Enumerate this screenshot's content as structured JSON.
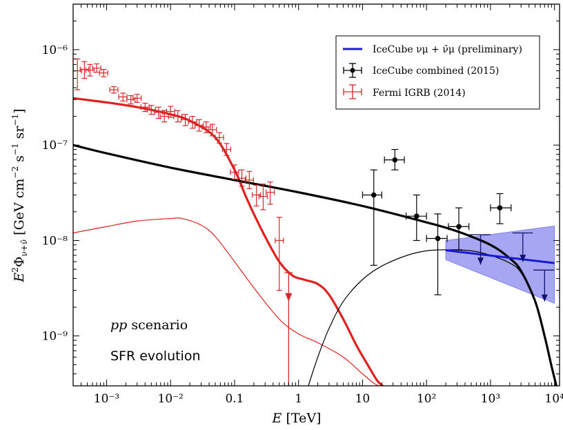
{
  "chart_data": {
    "type": "line",
    "xlabel": "E [TeV]",
    "ylabel": "E²Φν+ν̄ [GeV cm⁻² s⁻¹ sr⁻¹]",
    "xscale": "log",
    "yscale": "log",
    "xlim": [
      0.0003,
      12000
    ],
    "ylim": [
      3e-10,
      3e-06
    ],
    "grid": false,
    "legend_position": "top-right",
    "x_ticks": [
      {
        "value": 0.001,
        "label": "10⁻³"
      },
      {
        "value": 0.01,
        "label": "10⁻²"
      },
      {
        "value": 0.1,
        "label": "0.1"
      },
      {
        "value": 1,
        "label": "1"
      },
      {
        "value": 10,
        "label": "10"
      },
      {
        "value": 100,
        "label": "10²"
      },
      {
        "value": 1000,
        "label": "10³"
      },
      {
        "value": 10000,
        "label": "10⁴"
      }
    ],
    "y_ticks": [
      {
        "value": 1e-09,
        "label": "10⁻⁹"
      },
      {
        "value": 1e-08,
        "label": "10⁻⁸"
      },
      {
        "value": 1e-07,
        "label": "10⁻⁷"
      },
      {
        "value": 1e-06,
        "label": "10⁻⁶"
      }
    ],
    "annotations": [
      "pp scenario",
      "SFR evolution"
    ],
    "legend": [
      {
        "label": "IceCube νμ + ν̄μ (preliminary)",
        "color": "#1a1ad6",
        "style": "line"
      },
      {
        "label": "IceCube combined (2015)",
        "color": "#000000",
        "style": "errorbar"
      },
      {
        "label": "Fermi IGRB (2014)",
        "color": "#d62728",
        "style": "errorbar-open"
      }
    ],
    "curves": [
      {
        "id": "red-thick",
        "color": "#e0201c",
        "width": 3.2,
        "x": [
          0.0003,
          0.001,
          0.003,
          0.01,
          0.02,
          0.05,
          0.1,
          0.15,
          0.2,
          0.3,
          0.5,
          0.8,
          1.2,
          2,
          3,
          5,
          8,
          12,
          17,
          22
        ],
        "y": [
          3.1e-07,
          2.8e-07,
          2.5e-07,
          2.1e-07,
          1.8e-07,
          1.2e-07,
          5.5e-08,
          2.9e-08,
          1.9e-08,
          1.1e-08,
          6e-09,
          4.3e-09,
          3.9e-09,
          3.5e-09,
          2.7e-09,
          1.5e-09,
          8e-10,
          5e-10,
          3.4e-10,
          2.9e-10
        ]
      },
      {
        "id": "red-thin",
        "color": "#e0201c",
        "width": 1.2,
        "x": [
          0.0003,
          0.001,
          0.003,
          0.01,
          0.015,
          0.03,
          0.05,
          0.1,
          0.2,
          0.5,
          1,
          2,
          5,
          10,
          15,
          20
        ],
        "y": [
          1.2e-08,
          1.4e-08,
          1.6e-08,
          1.7e-08,
          1.7e-08,
          1.45e-08,
          1.1e-08,
          6e-09,
          3.2e-09,
          1.5e-09,
          1.05e-09,
          8.5e-10,
          6e-10,
          4e-10,
          3.2e-10,
          2.9e-10
        ]
      },
      {
        "id": "black-thick",
        "color": "#000000",
        "width": 3.2,
        "x": [
          0.0003,
          0.001,
          0.01,
          0.1,
          1,
          10,
          100,
          300,
          1000,
          2000,
          3000,
          5000,
          7000,
          9000,
          11000
        ],
        "y": [
          1e-07,
          8.2e-08,
          5.8e-08,
          4.3e-08,
          3.2e-08,
          2.3e-08,
          1.55e-08,
          1.25e-08,
          9e-09,
          6.5e-09,
          4.8e-09,
          2.3e-09,
          1e-09,
          4.8e-10,
          2.8e-10
        ]
      },
      {
        "id": "black-thin",
        "color": "#000000",
        "width": 1.2,
        "x": [
          1.4,
          2,
          3,
          5,
          10,
          20,
          50,
          100,
          200,
          500,
          1000,
          2000,
          3000,
          5000,
          7000,
          9000,
          11000
        ],
        "y": [
          2.9e-10,
          6e-10,
          1.2e-09,
          2.3e-09,
          3.9e-09,
          5.4e-09,
          7e-09,
          7.8e-09,
          8e-09,
          7.8e-09,
          7e-09,
          5.8e-09,
          4.6e-09,
          2.3e-09,
          1e-09,
          4.8e-10,
          2.8e-10
        ]
      }
    ],
    "icecube_band": {
      "color": "#8080ee",
      "x": [
        200,
        10000
      ],
      "upper": [
        1e-08,
        1.42e-08
      ],
      "lower": [
        6.3e-09,
        2.2e-09
      ],
      "line": {
        "color": "#1a1ad6",
        "y": [
          7.9e-09,
          5.8e-09
        ]
      }
    },
    "fermi_points": [
      {
        "x": 0.00035,
        "y": 6e-07,
        "yerr": [
          3.8e-07,
          8e-07
        ]
      },
      {
        "x": 0.00045,
        "y": 6.2e-07,
        "yerr": [
          5e-07,
          7.5e-07
        ]
      },
      {
        "x": 0.00055,
        "y": 6.1e-07,
        "yerr": [
          5.3e-07,
          7e-07
        ]
      },
      {
        "x": 0.0007,
        "y": 6.4e-07,
        "yerr": [
          5.8e-07,
          7.1e-07
        ]
      },
      {
        "x": 0.0009,
        "y": 5.7e-07,
        "yerr": [
          5.2e-07,
          6.2e-07
        ]
      },
      {
        "x": 0.0013,
        "y": 3.8e-07,
        "yerr": [
          3.5e-07,
          4.1e-07
        ]
      },
      {
        "x": 0.0018,
        "y": 3.2e-07,
        "yerr": [
          2.9e-07,
          3.5e-07
        ]
      },
      {
        "x": 0.0024,
        "y": 3e-07,
        "yerr": [
          2.7e-07,
          3.3e-07
        ]
      },
      {
        "x": 0.003,
        "y": 3.1e-07,
        "yerr": [
          2.8e-07,
          3.4e-07
        ]
      },
      {
        "x": 0.004,
        "y": 2.5e-07,
        "yerr": [
          2.25e-07,
          2.75e-07
        ]
      },
      {
        "x": 0.005,
        "y": 2.35e-07,
        "yerr": [
          2.1e-07,
          2.6e-07
        ]
      },
      {
        "x": 0.0065,
        "y": 2.2e-07,
        "yerr": [
          1.9e-07,
          2.5e-07
        ]
      },
      {
        "x": 0.008,
        "y": 2e-07,
        "yerr": [
          1.75e-07,
          2.3e-07
        ]
      },
      {
        "x": 0.01,
        "y": 2.25e-07,
        "yerr": [
          1.95e-07,
          2.55e-07
        ]
      },
      {
        "x": 0.013,
        "y": 2e-07,
        "yerr": [
          1.75e-07,
          2.3e-07
        ]
      },
      {
        "x": 0.017,
        "y": 1.85e-07,
        "yerr": [
          1.6e-07,
          2.1e-07
        ]
      },
      {
        "x": 0.022,
        "y": 1.75e-07,
        "yerr": [
          1.5e-07,
          2e-07
        ]
      },
      {
        "x": 0.028,
        "y": 1.6e-07,
        "yerr": [
          1.4e-07,
          1.85e-07
        ]
      },
      {
        "x": 0.036,
        "y": 1.55e-07,
        "yerr": [
          1.35e-07,
          1.75e-07
        ]
      },
      {
        "x": 0.045,
        "y": 1.45e-07,
        "yerr": [
          1.25e-07,
          1.65e-07
        ]
      },
      {
        "x": 0.058,
        "y": 1.2e-07,
        "yerr": [
          1.05e-07,
          1.35e-07
        ]
      },
      {
        "x": 0.075,
        "y": 9e-08,
        "yerr": [
          7.8e-08,
          1.04e-07
        ]
      },
      {
        "x": 0.1,
        "y": 5.2e-08,
        "yerr": [
          4.4e-08,
          6.2e-08
        ]
      },
      {
        "x": 0.13,
        "y": 4.5e-08,
        "yerr": [
          3.7e-08,
          5.5e-08
        ]
      },
      {
        "x": 0.17,
        "y": 4.3e-08,
        "yerr": [
          3.5e-08,
          5.3e-08
        ]
      },
      {
        "x": 0.22,
        "y": 3e-08,
        "yerr": [
          2.3e-08,
          3.8e-08
        ]
      },
      {
        "x": 0.28,
        "y": 2.9e-08,
        "yerr": [
          2.1e-08,
          3.9e-08
        ]
      },
      {
        "x": 0.36,
        "y": 3.2e-08,
        "yerr": [
          2.4e-08,
          4.1e-08
        ]
      },
      {
        "x": 0.5,
        "y": 1e-08,
        "yerr": [
          3e-09,
          1.75e-08
        ]
      }
    ],
    "fermi_upper_limit": {
      "x": 0.7,
      "y": 2.3e-09,
      "top": 4.6e-09,
      "bottom": 3e-10
    },
    "icecube_points": [
      {
        "x": 15,
        "y": 3e-08,
        "yerr": [
          5.5e-09,
          5.5e-08
        ],
        "xerr": [
          10,
          20
        ]
      },
      {
        "x": 32,
        "y": 7e-08,
        "yerr": [
          5.5e-08,
          9e-08
        ],
        "xerr": [
          22,
          45
        ]
      },
      {
        "x": 70,
        "y": 1.8e-08,
        "yerr": [
          1e-08,
          3e-08
        ],
        "xerr": [
          48,
          100
        ]
      },
      {
        "x": 150,
        "y": 1.05e-08,
        "yerr": [
          2.7e-09,
          1.9e-08
        ],
        "xerr": [
          100,
          210
        ]
      },
      {
        "x": 320,
        "y": 1.4e-08,
        "yerr": [
          8e-09,
          2.2e-08
        ],
        "xerr": [
          220,
          460
        ]
      },
      {
        "x": 1400,
        "y": 2.2e-08,
        "yerr": [
          1.5e-08,
          3.1e-08
        ],
        "xerr": [
          1000,
          2100
        ]
      }
    ],
    "icecube_upper_limits": [
      {
        "x": 700,
        "top": 1.15e-08,
        "bottom": 5.6e-09,
        "xerr": [
          470,
          1000
        ]
      },
      {
        "x": 3200,
        "top": 1.2e-08,
        "bottom": 6e-09,
        "xerr": [
          2200,
          4600
        ]
      },
      {
        "x": 7000,
        "top": 4.9e-09,
        "bottom": 2.3e-09,
        "xerr": [
          4700,
          10000
        ]
      }
    ]
  }
}
